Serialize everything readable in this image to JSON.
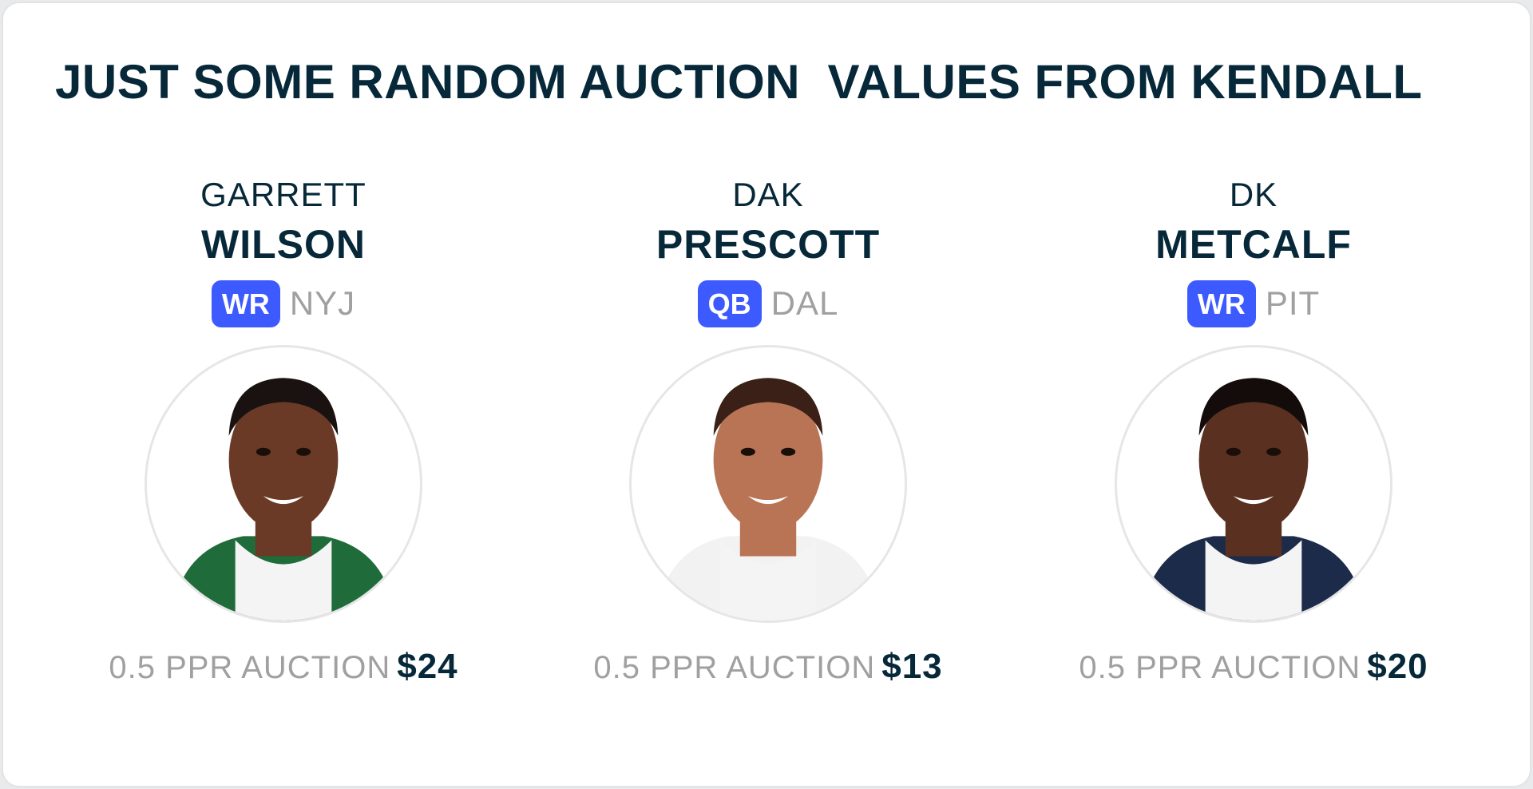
{
  "title": "JUST SOME RANDOM AUCTION  VALUES FROM KENDALL",
  "price_label": "0.5 PPR AUCTION",
  "colors": {
    "accent": "#3d5afe",
    "text": "#062838",
    "muted": "#a0a0a0"
  },
  "players": [
    {
      "first": "GARRETT",
      "last": "WILSON",
      "position": "WR",
      "team": "NYJ",
      "price": "$24",
      "skin": "#6b3a26",
      "hair": "#1a1210",
      "jersey": "#1f6b3a"
    },
    {
      "first": "DAK",
      "last": "PRESCOTT",
      "position": "QB",
      "team": "DAL",
      "price": "$13",
      "skin": "#b87454",
      "hair": "#3a2016",
      "jersey": "#f2f2f2"
    },
    {
      "first": "DK",
      "last": "METCALF",
      "position": "WR",
      "team": "PIT",
      "price": "$20",
      "skin": "#5a3020",
      "hair": "#140c0a",
      "jersey": "#1c2b4a"
    }
  ]
}
